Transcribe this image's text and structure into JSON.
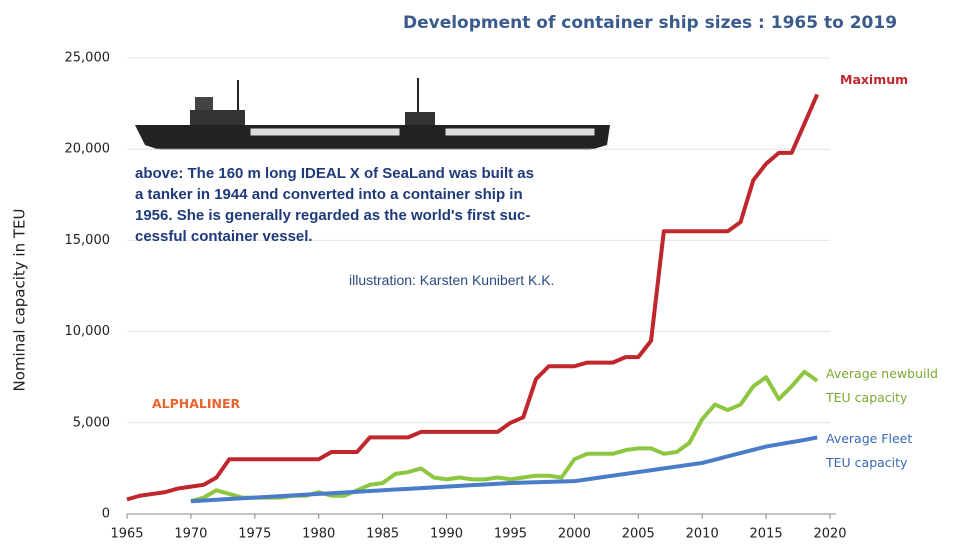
{
  "chart_data": {
    "type": "line",
    "title": "Development of container ship sizes : 1965 to 2019",
    "y_label": "Nominal capacity in TEU",
    "x": [
      1965,
      1966,
      1967,
      1968,
      1969,
      1970,
      1971,
      1972,
      1973,
      1974,
      1975,
      1976,
      1977,
      1978,
      1979,
      1980,
      1981,
      1982,
      1983,
      1984,
      1985,
      1986,
      1987,
      1988,
      1989,
      1990,
      1991,
      1992,
      1993,
      1994,
      1995,
      1996,
      1997,
      1998,
      1999,
      2000,
      2001,
      2002,
      2003,
      2004,
      2005,
      2006,
      2007,
      2008,
      2009,
      2010,
      2011,
      2012,
      2013,
      2014,
      2015,
      2016,
      2017,
      2018,
      2019
    ],
    "series": [
      {
        "name": "Maximum",
        "color": "#c0272d",
        "values": [
          800,
          1000,
          1100,
          1200,
          1400,
          1500,
          1600,
          2000,
          3000,
          3000,
          3000,
          3000,
          3000,
          3000,
          3000,
          3000,
          3400,
          3400,
          3400,
          4200,
          4200,
          4200,
          4200,
          4500,
          4500,
          4500,
          4500,
          4500,
          4500,
          4500,
          5000,
          5300,
          7400,
          8100,
          8100,
          8100,
          8300,
          8300,
          8300,
          8600,
          8600,
          9500,
          15500,
          15500,
          15500,
          15500,
          15500,
          15500,
          16000,
          18300,
          19200,
          19800,
          19800,
          21400,
          23000
        ]
      },
      {
        "name": "Average newbuild TEU capacity",
        "color": "#8dc63f",
        "values": [
          null,
          null,
          null,
          null,
          null,
          700,
          900,
          1300,
          1100,
          900,
          900,
          900,
          900,
          1000,
          1000,
          1200,
          1000,
          1000,
          1300,
          1600,
          1700,
          2200,
          2300,
          2500,
          2000,
          1900,
          2000,
          1900,
          1900,
          2000,
          1900,
          2000,
          2100,
          2100,
          2000,
          3000,
          3300,
          3300,
          3300,
          3500,
          3600,
          3600,
          3300,
          3400,
          3900,
          5200,
          6000,
          5700,
          6000,
          7000,
          7500,
          6300,
          7000,
          7800,
          7300
        ]
      },
      {
        "name": "Average Fleet TEU capacity",
        "color": "#4a7cc9",
        "values": [
          null,
          null,
          null,
          null,
          null,
          700,
          740,
          780,
          820,
          860,
          900,
          940,
          980,
          1020,
          1060,
          1100,
          1140,
          1180,
          1220,
          1260,
          1300,
          1340,
          1380,
          1420,
          1460,
          1500,
          1540,
          1580,
          1620,
          1660,
          1700,
          1720,
          1740,
          1760,
          1780,
          1800,
          1900,
          2000,
          2100,
          2200,
          2300,
          2400,
          2500,
          2600,
          2700,
          2800,
          2980,
          3160,
          3340,
          3520,
          3700,
          3820,
          3940,
          4060,
          4200
        ]
      }
    ],
    "xlim": [
      1965,
      2020
    ],
    "xticks": [
      1965,
      1970,
      1975,
      1980,
      1985,
      1990,
      1995,
      2000,
      2005,
      2010,
      2015,
      2020
    ],
    "ylim": [
      0,
      25000
    ],
    "yticks": [
      0,
      {
        "value": 5000,
        "label": "5,000"
      },
      {
        "value": 10000,
        "label": "10,000"
      },
      {
        "value": 15000,
        "label": "15,000"
      },
      {
        "value": 20000,
        "label": "20,000"
      },
      {
        "value": 25000,
        "label": "25,000"
      }
    ],
    "grid": true,
    "annotations": {
      "source": "ALPHALINER",
      "caption": [
        "above: The 160 m long IDEAL X of SeaLand was built as",
        "a tanker in 1944 and converted into a container ship in",
        "1956. She is generally regarded as the world's first suc-",
        "cessful container vessel."
      ],
      "credit": "illustration: Karsten Kunibert K.K."
    }
  }
}
